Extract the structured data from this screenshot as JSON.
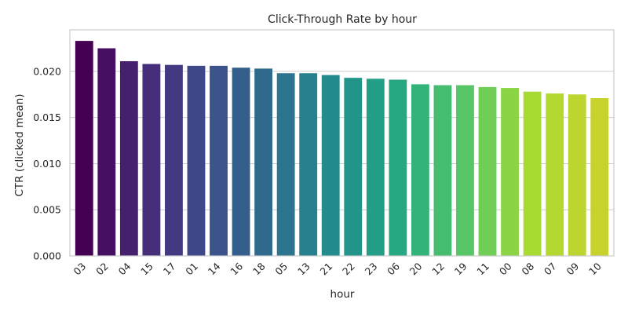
{
  "chart_data": {
    "type": "bar",
    "title": "Click-Through Rate by hour",
    "xlabel": "hour",
    "ylabel": "CTR (clicked mean)",
    "categories": [
      "03",
      "02",
      "04",
      "15",
      "17",
      "01",
      "14",
      "16",
      "18",
      "05",
      "13",
      "21",
      "22",
      "23",
      "06",
      "20",
      "12",
      "19",
      "11",
      "00",
      "08",
      "07",
      "09",
      "10"
    ],
    "values": [
      0.0233,
      0.0225,
      0.0211,
      0.0208,
      0.0207,
      0.0206,
      0.0206,
      0.0204,
      0.0203,
      0.0198,
      0.0198,
      0.0196,
      0.0193,
      0.0192,
      0.0191,
      0.0186,
      0.0185,
      0.0185,
      0.0183,
      0.0182,
      0.0178,
      0.0176,
      0.0175,
      0.0171
    ],
    "ylim": [
      0,
      0.0245
    ],
    "yticks": [
      0.0,
      0.005,
      0.01,
      0.015,
      0.02
    ],
    "ytick_labels": [
      "0.000",
      "0.005",
      "0.010",
      "0.015",
      "0.020"
    ],
    "grid": true,
    "palette": "viridis",
    "colors": [
      "#440154",
      "#472c7a",
      "#3b518b",
      "#2c718e",
      "#21908d",
      "#27ad81",
      "#5cc863",
      "#aadc32",
      "#c8d22d"
    ]
  }
}
